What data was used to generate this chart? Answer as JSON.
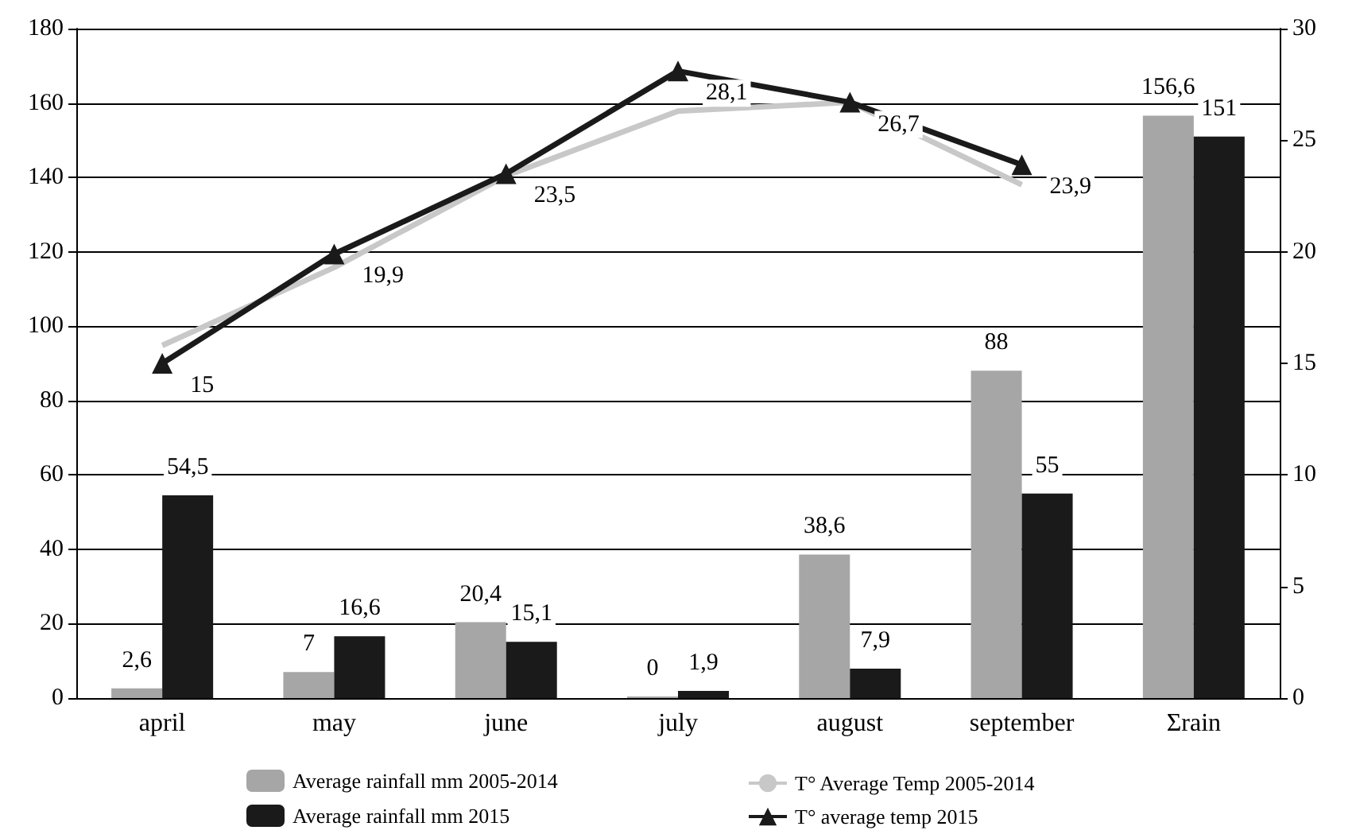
{
  "chart_data": {
    "type": "bar",
    "categories": [
      "april",
      "may",
      "june",
      "july",
      "august",
      "september",
      "Σrain"
    ],
    "series": [
      {
        "name": "Average rainfall mm 2005-2014",
        "color": "#a6a6a6",
        "values": [
          2.6,
          7,
          20.4,
          0,
          38.6,
          88,
          156.6
        ],
        "value_labels": [
          "2,6",
          "7",
          "20,4",
          "0",
          "38,6",
          "88",
          "156,6"
        ]
      },
      {
        "name": "Average rainfall mm 2015",
        "color": "#1a1a1a",
        "values": [
          54.5,
          16.6,
          15.1,
          1.9,
          7.9,
          55,
          151
        ],
        "value_labels": [
          "54,5",
          "16,6",
          "15,1",
          "1,9",
          "7,9",
          "55",
          "151"
        ]
      },
      {
        "name": "T° Average Temp 2005-2014",
        "type": "line",
        "axis": "y2",
        "color": "#c8c8c8",
        "marker": "none",
        "values": [
          15.8,
          19.3,
          23.4,
          26.3,
          26.7,
          23.0,
          null
        ]
      },
      {
        "name": "T° average temp 2015",
        "type": "line",
        "axis": "y2",
        "color": "#1a1a1a",
        "marker": "triangle",
        "values": [
          15,
          19.9,
          23.5,
          28.1,
          26.7,
          23.9,
          null
        ],
        "value_labels": [
          "15",
          "19,9",
          "23,5",
          "28,1",
          "26,7",
          "23,9",
          null
        ]
      }
    ],
    "ylim": [
      0,
      180
    ],
    "yticks": [
      0,
      20,
      40,
      60,
      80,
      100,
      120,
      140,
      160,
      180
    ],
    "y2lim": [
      0,
      30
    ],
    "y2ticks": [
      0,
      5,
      10,
      15,
      20,
      25,
      30
    ],
    "grid": "y",
    "legend": "bottom"
  }
}
